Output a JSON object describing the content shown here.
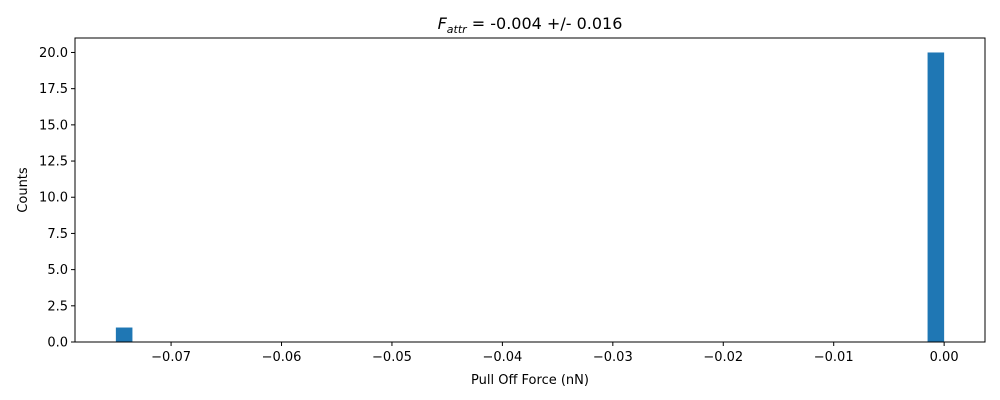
{
  "chart_data": {
    "type": "bar",
    "title_symbol": "F",
    "title_subscript": "attr",
    "title_rest": " = -0.004 +/- 0.016",
    "xlabel": "Pull Off Force (nN)",
    "ylabel": "Counts",
    "xlim": [
      -0.0787,
      0.0037
    ],
    "ylim": [
      0,
      21
    ],
    "x_ticks": [
      {
        "value": -0.07,
        "label": "−0.07"
      },
      {
        "value": -0.06,
        "label": "−0.06"
      },
      {
        "value": -0.05,
        "label": "−0.05"
      },
      {
        "value": -0.04,
        "label": "−0.04"
      },
      {
        "value": -0.03,
        "label": "−0.03"
      },
      {
        "value": -0.02,
        "label": "−0.02"
      },
      {
        "value": -0.01,
        "label": "−0.01"
      },
      {
        "value": 0.0,
        "label": "0.00"
      }
    ],
    "y_ticks": [
      {
        "value": 0,
        "label": "0.0"
      },
      {
        "value": 2.5,
        "label": "2.5"
      },
      {
        "value": 5,
        "label": "5.0"
      },
      {
        "value": 7.5,
        "label": "7.5"
      },
      {
        "value": 10,
        "label": "10.0"
      },
      {
        "value": 12.5,
        "label": "12.5"
      },
      {
        "value": 15,
        "label": "15.0"
      },
      {
        "value": 17.5,
        "label": "17.5"
      },
      {
        "value": 20,
        "label": "20.0"
      }
    ],
    "bins": [
      {
        "x0": -0.075,
        "x1": -0.0735,
        "count": 1
      },
      {
        "x0": -0.0015,
        "x1": 0.0,
        "count": 20
      }
    ],
    "bar_color": "#1f77b4",
    "grid": false
  }
}
